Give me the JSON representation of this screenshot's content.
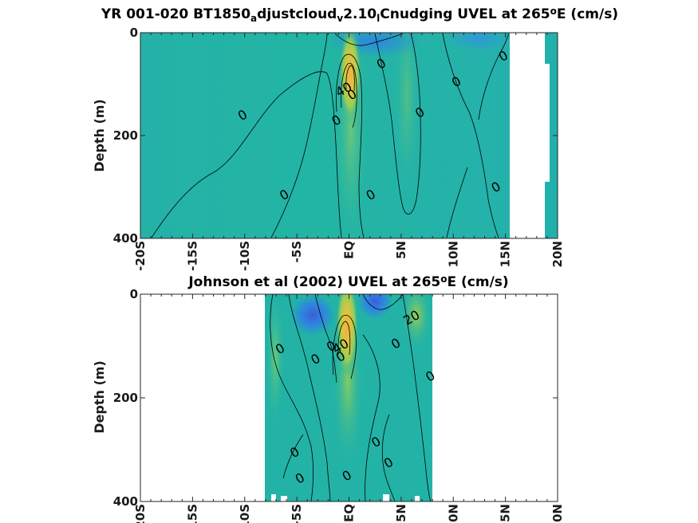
{
  "colors": {
    "field_base": "#22b3a6",
    "jet_core": "#f5b23e",
    "jet_mid": "#cfd04a",
    "jet_outer": "#8cc85a",
    "westward": "#2e86e0",
    "westward_deep": "#3b5fd6",
    "contour": "#000000"
  },
  "chart_data": [
    {
      "type": "heatmap",
      "title_parts": [
        "YR 001-020 BT1850",
        "a",
        "djustcloud",
        "v",
        "2.10",
        "l",
        "Cnudging UVEL at 265",
        "o",
        "E (cm/s)"
      ],
      "title_part_styles": [
        "normal",
        "sub",
        "normal",
        "sub",
        "normal",
        "sub",
        "normal",
        "sup",
        "normal"
      ],
      "ylabel": "Depth (m)",
      "xlim": [
        -20,
        20
      ],
      "ylim": [
        400,
        0
      ],
      "y_reversed": true,
      "x_ticks": [
        "-20S",
        "-15S",
        "-10S",
        "-5S",
        "EQ",
        "5N",
        "10N",
        "15N",
        "20N"
      ],
      "y_ticks": [
        "0",
        "200",
        "400"
      ],
      "data_extent_lat": [
        -20,
        15.3
      ],
      "jet_core": {
        "lat": 0.3,
        "depth": 85,
        "max_cm_s": 60
      },
      "contour_labels": [
        {
          "text": "0",
          "lat": -10.0,
          "depth": 160
        },
        {
          "text": "0",
          "lat": -6.0,
          "depth": 315
        },
        {
          "text": "0",
          "lat": 3.3,
          "depth": 60
        },
        {
          "text": "0",
          "lat": 10.5,
          "depth": 95
        },
        {
          "text": "0",
          "lat": 7.0,
          "depth": 155
        },
        {
          "text": "0",
          "lat": 2.3,
          "depth": 315
        },
        {
          "text": "0",
          "lat": 15.0,
          "depth": 45
        },
        {
          "text": "0",
          "lat": 14.3,
          "depth": 300
        },
        {
          "text": "0",
          "lat": -1.0,
          "depth": 170
        },
        {
          "text": "40",
          "lat": -0.3,
          "depth": 110
        },
        {
          "text": "0",
          "lat": 0.5,
          "depth": 120
        }
      ]
    },
    {
      "type": "heatmap",
      "title_parts": [
        "Johnson et al (2002) UVEL at 265",
        "o",
        "E (cm/s)"
      ],
      "title_part_styles": [
        "normal",
        "sup",
        "normal"
      ],
      "ylabel": "Depth (m)",
      "xlim": [
        -20,
        20
      ],
      "ylim": [
        400,
        0
      ],
      "y_reversed": true,
      "x_ticks": [
        "-20S",
        "-15S",
        "-10S",
        "-5S",
        "EQ",
        "5N",
        "10N",
        "15N",
        "20N"
      ],
      "y_ticks": [
        "0",
        "200",
        "400"
      ],
      "data_extent_lat": [
        -8,
        8
      ],
      "jet_core": {
        "lat": 0.0,
        "depth": 70,
        "max_cm_s": 60
      },
      "contour_labels": [
        {
          "text": "0",
          "lat": -6.4,
          "depth": 105
        },
        {
          "text": "0",
          "lat": -3.0,
          "depth": 125
        },
        {
          "text": "0",
          "lat": -1.5,
          "depth": 100
        },
        {
          "text": "40",
          "lat": -0.6,
          "depth": 100
        },
        {
          "text": "0",
          "lat": -0.6,
          "depth": 120
        },
        {
          "text": "20",
          "lat": 6.2,
          "depth": 45
        },
        {
          "text": "0",
          "lat": 4.7,
          "depth": 95
        },
        {
          "text": "0",
          "lat": 8.0,
          "depth": 158
        },
        {
          "text": "0",
          "lat": 2.8,
          "depth": 285
        },
        {
          "text": "0",
          "lat": -5.0,
          "depth": 305
        },
        {
          "text": "0",
          "lat": -4.5,
          "depth": 355
        },
        {
          "text": "0",
          "lat": 4.0,
          "depth": 325
        },
        {
          "text": "0",
          "lat": 0.0,
          "depth": 350
        }
      ]
    }
  ]
}
